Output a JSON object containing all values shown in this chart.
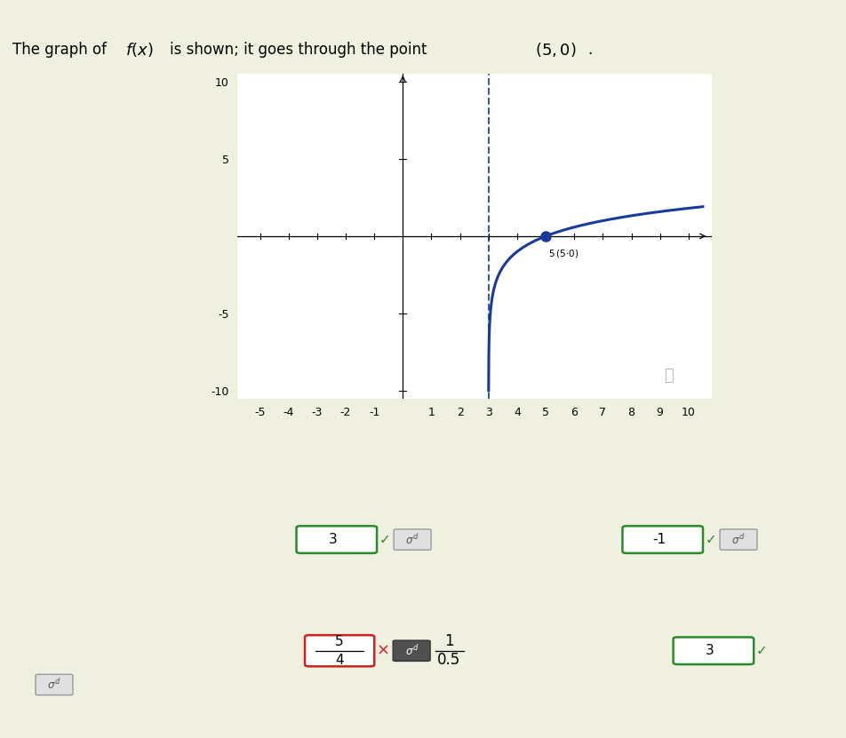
{
  "bg_color": "#f0f0e0",
  "plot_bg": "#ffffff",
  "curve_color": "#1a3a9a",
  "asymptote_color": "#3a5aaa",
  "point_color": "#1a3a9a",
  "asymptote_x": 3,
  "xlim": [
    -5.8,
    10.8
  ],
  "ylim": [
    -10.5,
    10.5
  ],
  "xticks": [
    -5,
    -4,
    -3,
    -2,
    -1,
    1,
    2,
    3,
    4,
    5,
    6,
    7,
    8,
    9,
    10
  ],
  "ytick_vals": [
    -10,
    -5,
    5,
    10
  ],
  "ytick_labels": [
    "-10",
    "-5",
    "5",
    "10"
  ],
  "point_x": 5,
  "point_y": 0,
  "green_color": "#2a8a2a",
  "red_color": "#cc2222",
  "dark_box_color": "#444444",
  "check_color": "#2a8a2a"
}
